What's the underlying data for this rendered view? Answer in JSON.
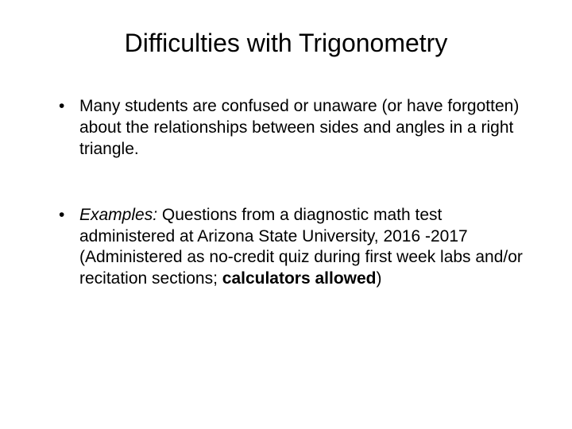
{
  "title": "Difficulties with Trigonometry",
  "bullets": [
    {
      "text": "Many students are confused or unaware (or have forgotten) about the relationships between sides and angles in a right triangle."
    },
    {
      "prefix_italic": "Examples:",
      "middle": " Questions from a diagnostic math test administered at Arizona State University, 2016 -2017 (Administered as no-credit quiz during first week labs and/or recitation sections; ",
      "bold_part": "calculators allowed",
      "suffix": ")"
    }
  ]
}
